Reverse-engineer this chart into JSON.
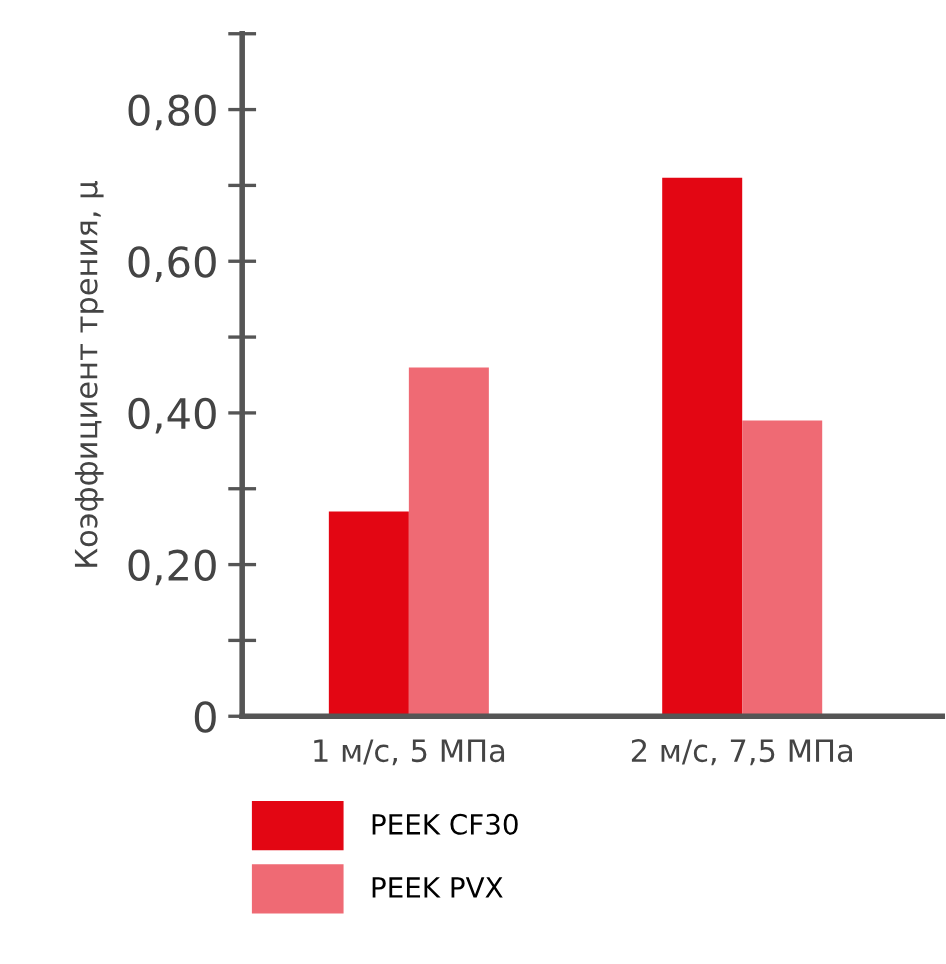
{
  "chart_data": {
    "type": "bar",
    "ylabel": "Коэффициент трения, μ",
    "categories": [
      "1 м/с, 5 МПа",
      "2 м/с, 7,5 МПа"
    ],
    "series": [
      {
        "name": "PEEK CF30",
        "color": "#e30613",
        "values": [
          0.27,
          0.71
        ]
      },
      {
        "name": "PEEK PVX",
        "color": "#ef6a74",
        "values": [
          0.46,
          0.39
        ]
      }
    ],
    "ylim": [
      0,
      0.9
    ],
    "yticks": [
      {
        "value": 0,
        "label": "0"
      },
      {
        "value": 0.1,
        "label": null
      },
      {
        "value": 0.2,
        "label": "0,20"
      },
      {
        "value": 0.3,
        "label": null
      },
      {
        "value": 0.4,
        "label": "0,40"
      },
      {
        "value": 0.5,
        "label": null
      },
      {
        "value": 0.6,
        "label": "0,60"
      },
      {
        "value": 0.7,
        "label": null
      },
      {
        "value": 0.8,
        "label": "0,80"
      },
      {
        "value": 0.9,
        "label": null
      }
    ],
    "grid": false,
    "legend": "bottom"
  }
}
